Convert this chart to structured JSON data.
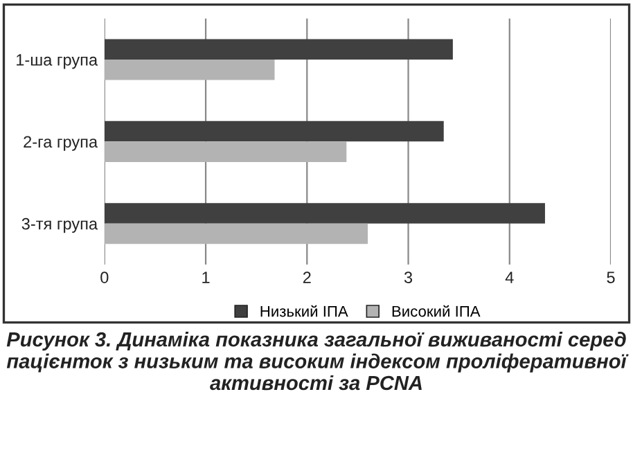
{
  "chart_data": {
    "type": "bar",
    "orientation": "horizontal",
    "title": "Рисунок 3. Динаміка показника загальної виживаності серед пацієнток з низьким та високим індексом проліферативної активності за PCNA",
    "categories": [
      "1-ша група",
      "2-га група",
      "3-тя група"
    ],
    "series": [
      {
        "name": "Низький ІПА",
        "color": "#404040",
        "values": [
          3.44,
          3.35,
          4.35
        ]
      },
      {
        "name": "Високий ІПА",
        "color": "#b3b3b3",
        "values": [
          1.68,
          2.39,
          2.6
        ]
      }
    ],
    "xlim": [
      0,
      5
    ],
    "xticks": [
      0,
      1,
      2,
      3,
      4,
      5
    ],
    "grid": "x",
    "legend": "bottom"
  }
}
